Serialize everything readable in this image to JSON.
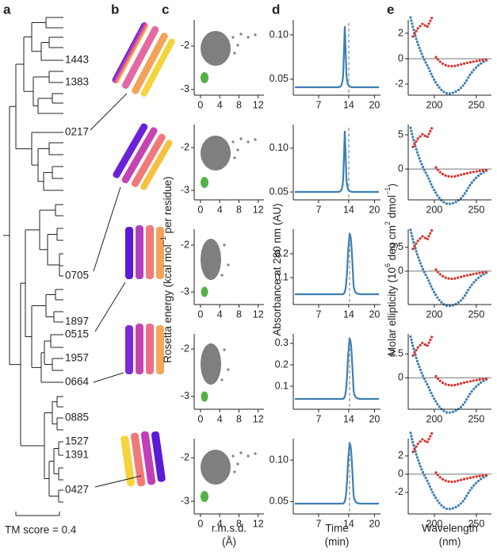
{
  "panel_labels": [
    "a",
    "b",
    "c",
    "d",
    "e"
  ],
  "tree": {
    "leaves": [
      {
        "label": "1443",
        "color": "#888888"
      },
      {
        "label": "1383",
        "color": "#888888"
      },
      {
        "label": "0217",
        "color": "#111111"
      },
      {
        "label": "0705",
        "color": "#111111"
      },
      {
        "label": "1897",
        "color": "#888888"
      },
      {
        "label": "0515",
        "color": "#111111"
      },
      {
        "label": "1957",
        "color": "#888888"
      },
      {
        "label": "0664",
        "color": "#111111"
      },
      {
        "label": "0885",
        "color": "#888888"
      },
      {
        "label": "1527",
        "color": "#888888"
      },
      {
        "label": "1391",
        "color": "#888888"
      },
      {
        "label": "0427",
        "color": "#111111"
      }
    ],
    "scale_label": "TM score = 0.4"
  },
  "energy": {
    "ylabel": [
      "Rosetta energy (kcal mol",
      "−1",
      " per residue)"
    ],
    "xlabel": [
      "r.m.s.d.",
      "(Å)"
    ],
    "xlim": [
      -1.3,
      13.2
    ],
    "xticks": [
      0,
      4,
      8,
      12
    ],
    "colors": {
      "designs": "#7f7f7f",
      "native": "#55b04a"
    },
    "rows": [
      {
        "ylim": [
          -3.13,
          -1.4
        ],
        "yticks": [
          -2,
          -3
        ]
      },
      {
        "ylim": [
          -3.22,
          -1.46
        ],
        "yticks": [
          -2,
          -3
        ]
      },
      {
        "ylim": [
          -3.27,
          -1.66
        ],
        "yticks": [
          -2,
          -3
        ]
      },
      {
        "ylim": [
          -3.27,
          -1.68
        ],
        "yticks": [
          -2,
          -3
        ]
      },
      {
        "ylim": [
          -3.29,
          -1.56
        ],
        "yticks": [
          -2,
          -3
        ]
      }
    ]
  },
  "sec": {
    "ylabel": [
      "Absorbance at 280 nm (AU)"
    ],
    "xlabel": [
      "Time",
      "(min)"
    ],
    "xlim": [
      1.1,
      21.4
    ],
    "xticks": [
      7,
      14,
      20
    ],
    "color": "#3d7fb3",
    "rows": [
      {
        "ylim": [
          0.032,
          0.117
        ],
        "yticks": [
          {
            "value": 0.1,
            "label": "0.10"
          },
          0.05
        ]
      },
      {
        "ylim": [
          0.041,
          0.127
        ],
        "yticks": [
          {
            "value": 0.1,
            "label": "0.10"
          },
          0.05
        ]
      },
      {
        "ylim": [
          -0.013,
          0.303
        ],
        "yticks": [
          0.2,
          0.1
        ]
      },
      {
        "ylim": [
          -0.007,
          0.344
        ],
        "yticks": [
          0.3,
          0.2,
          0.1
        ]
      },
      {
        "ylim": [
          0.035,
          0.126
        ],
        "yticks": [
          {
            "value": 0.1,
            "label": "0.10"
          },
          0.05
        ]
      }
    ]
  },
  "cd": {
    "ylabel": [
      "Molar ellipticity (10",
      "6",
      " deg cm",
      "2",
      " dmol",
      "−1",
      ")"
    ],
    "xlabel": [
      "Wavelength",
      "(nm)"
    ],
    "xlim": [
      168.9,
      268
    ],
    "xticks": [
      200,
      250
    ],
    "colors": {
      "blue": "#3d7fb3",
      "red": "#d7302a"
    },
    "rows": [
      {
        "ylim": [
          -2.875,
          3.06
        ],
        "yticks": [
          2,
          0,
          -2
        ]
      },
      {
        "ylim": [
          -4.5,
          6.5
        ],
        "yticks": [
          5,
          0
        ]
      },
      {
        "ylim": [
          -3.5,
          4.4
        ],
        "yticks": [
          2.5,
          0
        ]
      },
      {
        "ylim": [
          -3.3,
          4.6
        ],
        "yticks": [
          2.5,
          0
        ]
      },
      {
        "ylim": [
          -4.35,
          3.9
        ],
        "yticks": [
          2,
          0,
          -2
        ]
      }
    ]
  }
}
